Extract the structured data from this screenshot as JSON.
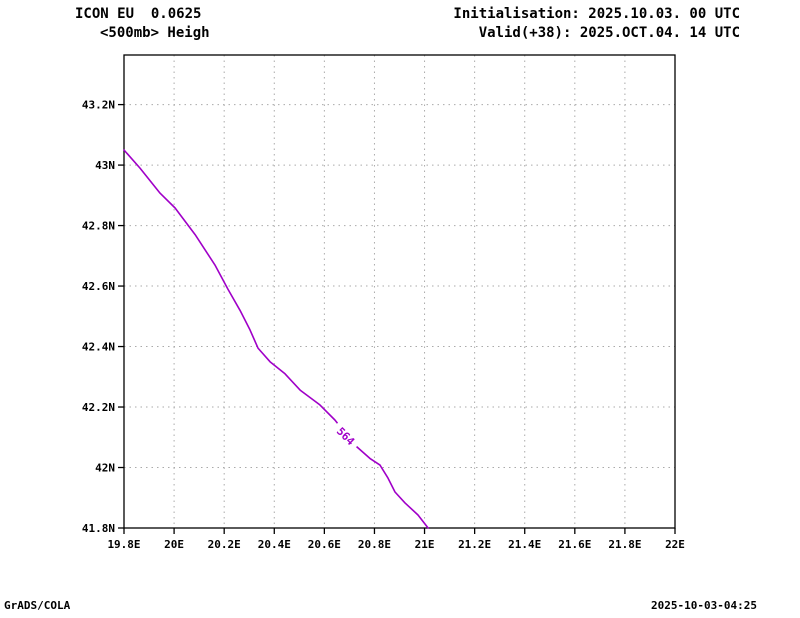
{
  "header": {
    "model": "ICON EU  0.0625",
    "field": "<500mb> Heigh",
    "init": "Initialisation: 2025.10.03. 00 UTC",
    "valid": "Valid(+38): 2025.OCT.04. 14 UTC"
  },
  "footer": {
    "credit": "GrADS/COLA",
    "timestamp": "2025-10-03-04:25"
  },
  "chart_data": {
    "type": "line",
    "subtype": "contour-map",
    "title": "<500mb> Heigh",
    "xlim": [
      19.8,
      22.0
    ],
    "ylim": [
      41.8,
      43.364
    ],
    "grid": "dotted",
    "grid_color": "#aaaaaa",
    "frame_color": "#000000",
    "x_tick_values": [
      19.8,
      20.0,
      20.2,
      20.4,
      20.6,
      20.8,
      21.0,
      21.2,
      21.4,
      21.6,
      21.8,
      22.0
    ],
    "x_tick_labels": [
      "19.8E",
      "20E",
      "20.2E",
      "20.4E",
      "20.6E",
      "20.8E",
      "21E",
      "21.2E",
      "21.4E",
      "21.6E",
      "21.8E",
      "22E"
    ],
    "y_tick_values": [
      43.2,
      43.0,
      42.8,
      42.6,
      42.4,
      42.2,
      42.0,
      41.8
    ],
    "y_tick_labels": [
      "43.2N",
      "43N",
      "42.8N",
      "42.6N",
      "42.4N",
      "42.2N",
      "42N",
      "41.8N"
    ],
    "contours": [
      {
        "value": 564,
        "label": "564",
        "color": "#a000c8",
        "label_pos": [
          20.686,
          42.104
        ],
        "label_rotation_deg": 45,
        "points": [
          [
            19.8,
            43.05
          ],
          [
            19.864,
            42.99
          ],
          [
            19.944,
            42.907
          ],
          [
            20.004,
            42.858
          ],
          [
            20.084,
            42.77
          ],
          [
            20.163,
            42.67
          ],
          [
            20.215,
            42.59
          ],
          [
            20.263,
            42.52
          ],
          [
            20.303,
            42.455
          ],
          [
            20.335,
            42.395
          ],
          [
            20.383,
            42.35
          ],
          [
            20.443,
            42.31
          ],
          [
            20.503,
            42.256
          ],
          [
            20.582,
            42.207
          ],
          [
            20.642,
            42.157
          ],
          [
            20.722,
            42.074
          ],
          [
            20.782,
            42.03
          ],
          [
            20.822,
            42.008
          ],
          [
            20.854,
            41.965
          ],
          [
            20.882,
            41.919
          ],
          [
            20.922,
            41.883
          ],
          [
            20.974,
            41.843
          ],
          [
            21.014,
            41.8
          ]
        ]
      }
    ]
  }
}
